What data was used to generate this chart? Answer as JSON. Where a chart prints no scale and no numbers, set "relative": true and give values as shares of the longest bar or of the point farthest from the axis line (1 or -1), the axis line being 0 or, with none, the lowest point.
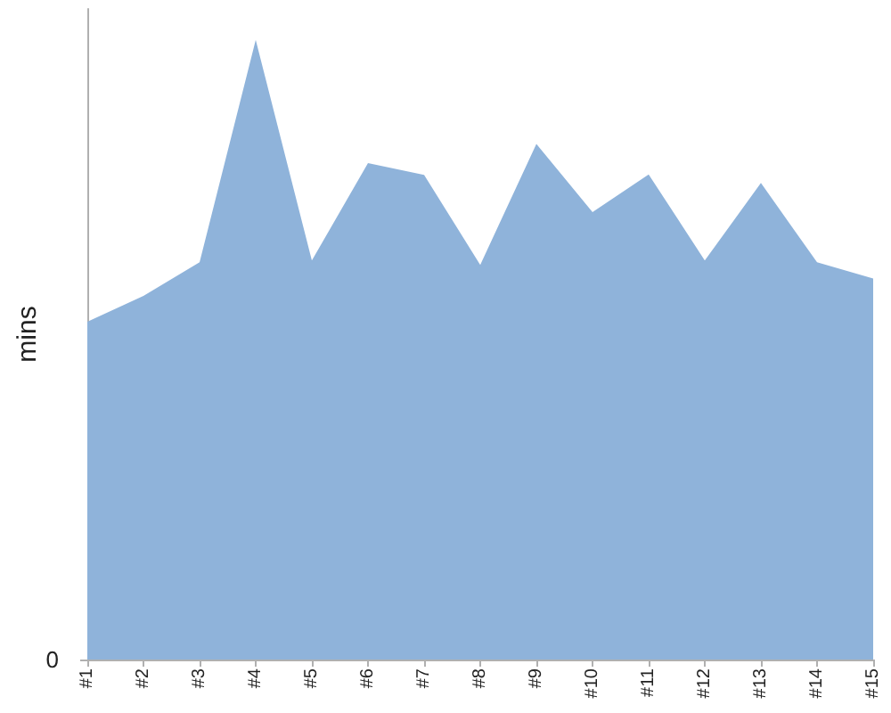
{
  "chart_data": {
    "type": "area",
    "ylabel": "mins",
    "relative": true,
    "categories": [
      "#1",
      "#2",
      "#3",
      "#4",
      "#5",
      "#6",
      "#7",
      "#8",
      "#9",
      "#10",
      "#11",
      "#12",
      "#13",
      "#14",
      "#15"
    ],
    "values": [
      0.545,
      0.587,
      0.641,
      1,
      0.644,
      0.801,
      0.782,
      0.637,
      0.832,
      0.722,
      0.783,
      0.644,
      0.769,
      0.641,
      0.615
    ],
    "color": "#8fb3da",
    "annotations": [
      "0"
    ]
  }
}
